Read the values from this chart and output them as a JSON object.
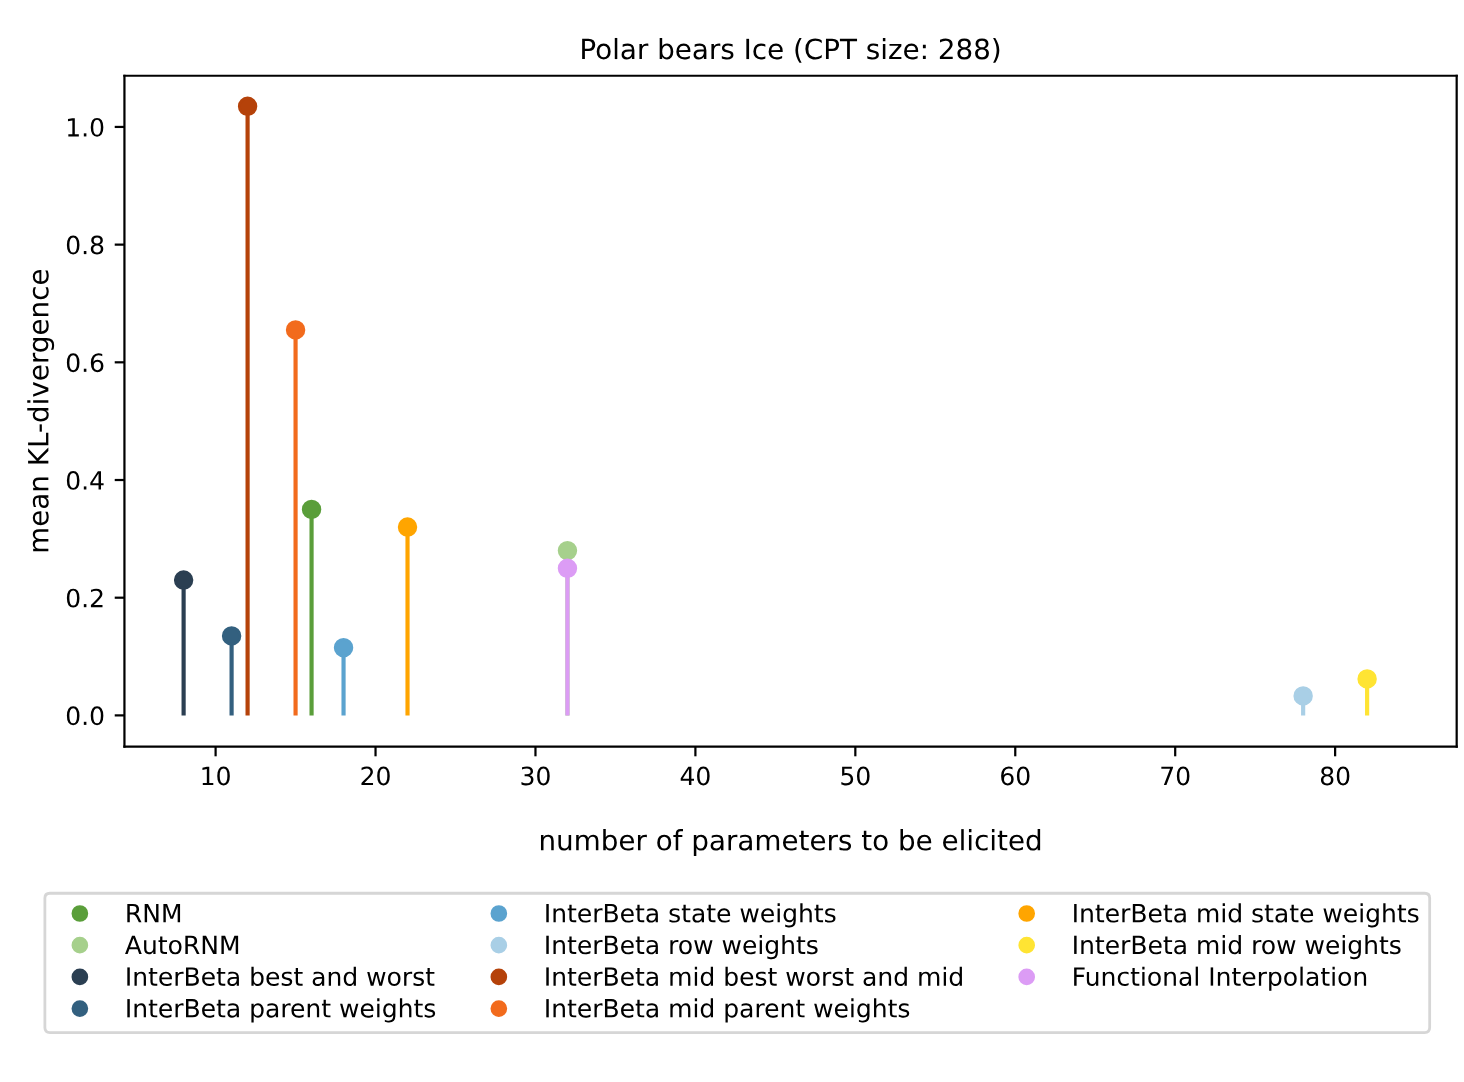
{
  "chart_data": {
    "type": "lollipop",
    "title": "Polar bears Ice (CPT size: 288)",
    "xlabel": "number of parameters to be elicited",
    "ylabel": "mean KL-divergence",
    "xlim": [
      4.3,
      87.6
    ],
    "xticks": [
      10,
      20,
      30,
      40,
      50,
      60,
      70,
      80
    ],
    "ylim": [
      -0.053,
      1.087
    ],
    "yticks": [
      {
        "value": 0,
        "label": "0.0"
      },
      0.2,
      0.4,
      0.6,
      0.8,
      {
        "value": 1,
        "label": "1.0"
      }
    ],
    "grid": false,
    "legend": "bottom",
    "marker": "circle",
    "series": [
      {
        "name": "RNM",
        "color": "#5a9e3a",
        "x": [
          16
        ],
        "values": [
          0.35
        ]
      },
      {
        "name": "AutoRNM",
        "color": "#a6d08c",
        "x": [
          32
        ],
        "values": [
          0.28
        ]
      },
      {
        "name": "InterBeta best and worst",
        "color": "#2b3f52",
        "x": [
          8
        ],
        "values": [
          0.23
        ]
      },
      {
        "name": "InterBeta parent weights",
        "color": "#33607f",
        "x": [
          11
        ],
        "values": [
          0.135
        ]
      },
      {
        "name": "InterBeta state weights",
        "color": "#5ba3cf",
        "x": [
          18
        ],
        "values": [
          0.115
        ]
      },
      {
        "name": "InterBeta row weights",
        "color": "#a9cfe6",
        "x": [
          78
        ],
        "values": [
          0.033
        ]
      },
      {
        "name": "InterBeta mid best worst and mid",
        "color": "#b5420a",
        "x": [
          12
        ],
        "values": [
          1.035
        ]
      },
      {
        "name": "InterBeta mid parent weights",
        "color": "#f26b1d",
        "x": [
          15
        ],
        "values": [
          0.655
        ]
      },
      {
        "name": "InterBeta mid state weights",
        "color": "#ffa500",
        "x": [
          22
        ],
        "values": [
          0.32
        ]
      },
      {
        "name": "InterBeta mid row weights",
        "color": "#ffe433",
        "x": [
          82
        ],
        "values": [
          0.062
        ]
      },
      {
        "name": "Functional Interpolation",
        "color": "#dc9cf5",
        "x": [
          32
        ],
        "values": [
          0.25
        ]
      }
    ]
  }
}
